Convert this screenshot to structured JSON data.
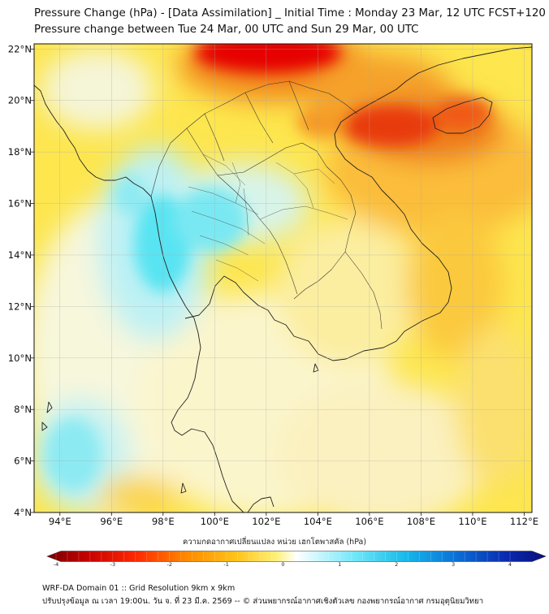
{
  "title": {
    "line1": "Pressure Change (hPa) - [Data Assimilation] _ Initial Time : Monday 23 Mar, 12 UTC FCST+120",
    "line2": "Pressure change between Tue 24 Mar, 00 UTC and Sun 29 Mar, 00 UTC"
  },
  "map": {
    "lon_range": [
      93,
      112.3
    ],
    "lat_range": [
      4,
      22.2
    ],
    "lon_ticks": [
      {
        "value": 94,
        "label": "94°E"
      },
      {
        "value": 96,
        "label": "96°E"
      },
      {
        "value": 98,
        "label": "98°E"
      },
      {
        "value": 100,
        "label": "100°E"
      },
      {
        "value": 102,
        "label": "102°E"
      },
      {
        "value": 104,
        "label": "104°E"
      },
      {
        "value": 106,
        "label": "106°E"
      },
      {
        "value": 108,
        "label": "108°E"
      },
      {
        "value": 110,
        "label": "110°E"
      },
      {
        "value": 112,
        "label": "112°E"
      }
    ],
    "lat_ticks": [
      {
        "value": 22,
        "label": "22°N"
      },
      {
        "value": 20,
        "label": "20°N"
      },
      {
        "value": 18,
        "label": "18°N"
      },
      {
        "value": 16,
        "label": "16°N"
      },
      {
        "value": 14,
        "label": "14°N"
      },
      {
        "value": 12,
        "label": "12°N"
      },
      {
        "value": 10,
        "label": "10°N"
      },
      {
        "value": 8,
        "label": "8°N"
      },
      {
        "value": 6,
        "label": "6°N"
      },
      {
        "value": 4,
        "label": "4°N"
      }
    ],
    "grid": true
  },
  "colorbar": {
    "title": "ความกดอากาศเปลี่ยนแปลง หน่วย เฮกโตพาสคัล (hPa)",
    "range": [
      -4,
      4
    ],
    "ticks": [
      {
        "value": -4,
        "label": "-4"
      },
      {
        "value": -3,
        "label": "-3"
      },
      {
        "value": -2,
        "label": "-2"
      },
      {
        "value": -1,
        "label": "-1"
      },
      {
        "value": 0,
        "label": "0"
      },
      {
        "value": 1,
        "label": "1"
      },
      {
        "value": 2,
        "label": "2"
      },
      {
        "value": 3,
        "label": "3"
      },
      {
        "value": 4,
        "label": "4"
      }
    ]
  },
  "footer": {
    "line1": "WRF-DA Domain 01 :: Grid Resolution 9km x 9km",
    "line2": "ปรับปรุงข้อมูล ณ เวลา 19:00น. วัน จ. ที่ 23 มี.ค. 2569 -- © ส่วนพยากรณ์อากาศเชิงตัวเลข กองพยากรณ์อากาศ กรมอุตุนิยมวิทยา"
  },
  "colors": {
    "strong_fall": "#d40000",
    "fall": "#f08a1e",
    "weak_fall": "#fbd63a",
    "neutral": "#fffbe0",
    "rise": "#3ee0f0",
    "strong_rise": "#0a1aa8",
    "coast": "#222222",
    "grid": "#aaaaaa"
  }
}
